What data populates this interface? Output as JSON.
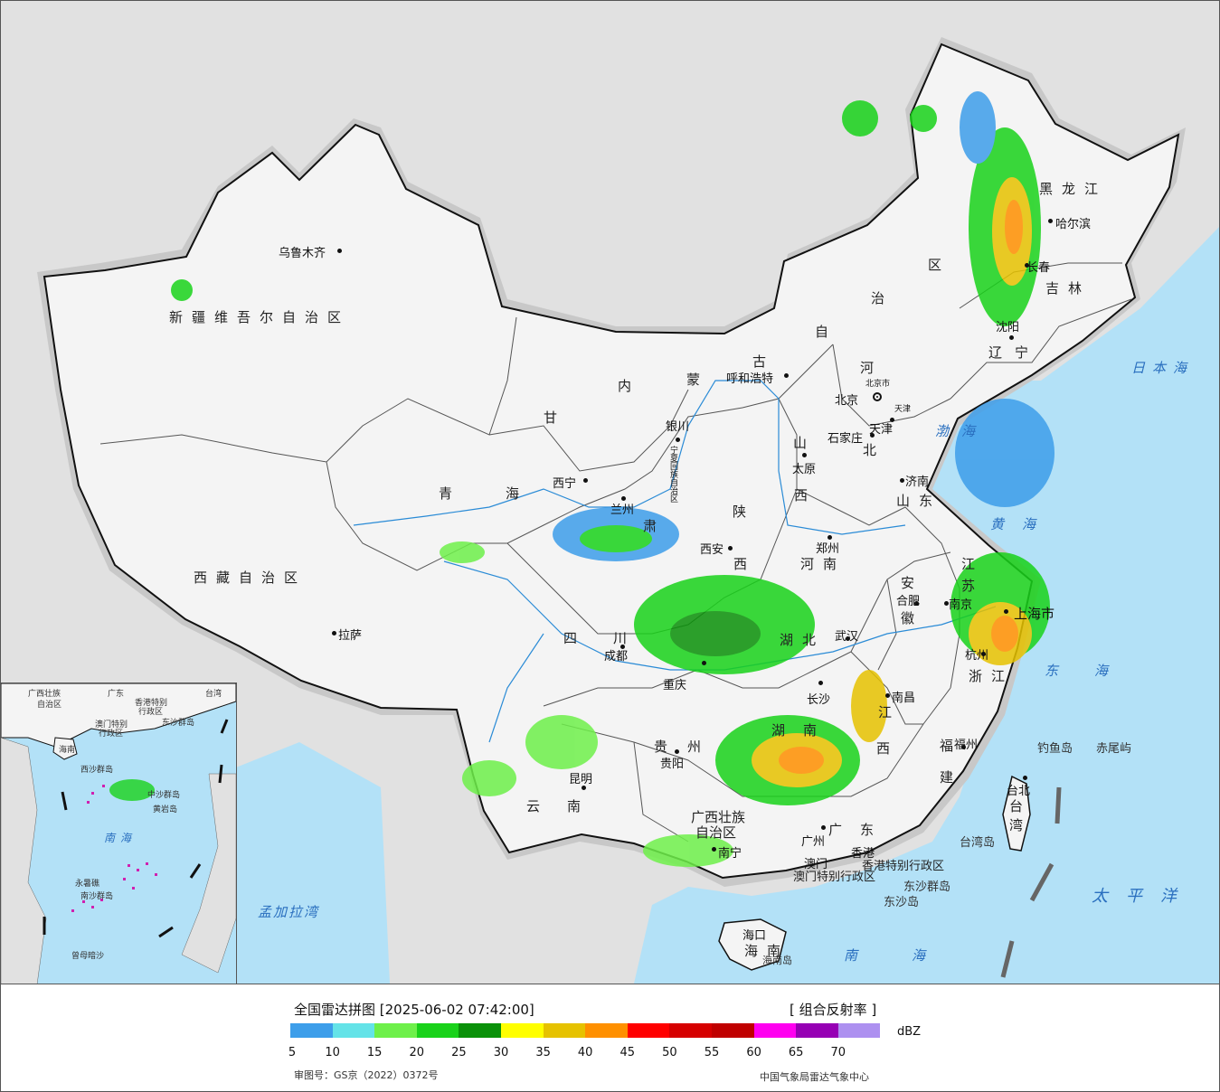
{
  "legend": {
    "title": "全国雷达拼图 [2025-06-02 07:42:00]",
    "product": "[ 组合反射率 ]",
    "unit": "dBZ",
    "approval": "审图号：GS京（2022）0372号",
    "agency": "中国气象局雷达气象中心",
    "scale": [
      {
        "color": "#3d9eea",
        "label": "5"
      },
      {
        "color": "#64e3e8",
        "label": "10"
      },
      {
        "color": "#6ef04a",
        "label": "15"
      },
      {
        "color": "#19d21a",
        "label": "20"
      },
      {
        "color": "#0a9109",
        "label": "25"
      },
      {
        "color": "#ffff00",
        "label": "30"
      },
      {
        "color": "#e6c200",
        "label": "35"
      },
      {
        "color": "#ff9000",
        "label": "40"
      },
      {
        "color": "#ff0000",
        "label": "45"
      },
      {
        "color": "#d60000",
        "label": "50"
      },
      {
        "color": "#c00000",
        "label": "55"
      },
      {
        "color": "#ff00f0",
        "label": "60"
      },
      {
        "color": "#9600b4",
        "label": "65"
      },
      {
        "color": "#ad90f0",
        "label": "70"
      }
    ]
  },
  "colors": {
    "sea": "#b3e1f7",
    "land_china": "#f4f4f4",
    "land_other": "#e1e1e1",
    "border": "#111111"
  },
  "cities": {
    "urumqi": "乌鲁木齐",
    "lhasa": "拉萨",
    "xining": "西宁",
    "lanzhou": "兰州",
    "yinchuan": "银川",
    "hohhot": "呼和浩特",
    "beijing": "北京",
    "beijing_small": "北京市",
    "tianjin": "天津",
    "tianjin_small": "天津",
    "shijiazhuang": "石家庄",
    "taiyuan": "太原",
    "jinan": "济南",
    "zhengzhou": "郑州",
    "xian": "西安",
    "chengdu": "成都",
    "chongqing": "重庆",
    "wuhan": "武汉",
    "hefei": "合肥",
    "nanjing": "南京",
    "shanghai": "上海市",
    "hangzhou": "杭州",
    "nanchang": "南昌",
    "changsha": "长沙",
    "guiyang": "贵阳",
    "kunming": "昆明",
    "nanning": "南宁",
    "guangzhou": "广州",
    "macau": "澳门",
    "hongkong": "香港",
    "fuzhou": "福州",
    "taipei": "台北",
    "haikou": "海口",
    "shenyang": "沈阳",
    "changchun": "长春",
    "harbin": "哈尔滨",
    "ningxia": "宁夏回族自治区"
  },
  "regions": {
    "xinjiang": "新疆维吾尔自治区",
    "tibet": "西藏自治区",
    "qinghai_1": "青",
    "qinghai_2": "海",
    "gansu": "甘",
    "su": "肃",
    "nei": "内",
    "meng": "蒙",
    "gu": "古",
    "zi": "自",
    "zhi": "治",
    "qu": "区",
    "heilongjiang": "黑龙江",
    "jilin": "吉林",
    "liaoning": "辽宁",
    "hebei_he": "河",
    "hebei_bei": "北",
    "shanxi_1": "山",
    "shanxi_2": "西",
    "shandong": "山东",
    "shaanxi_1": "陕",
    "shaanxi_2": "西",
    "henan": "河南",
    "sichuan": "四川",
    "hubei": "湖北",
    "anhui": "安徽",
    "jiangsu_1": "江",
    "jiangsu_2": "苏",
    "zhejiang": "浙江",
    "jiangxi_1": "江",
    "jiangxi_2": "西",
    "hunan": "湖南",
    "guizhou": "贵州",
    "yunnan": "云南",
    "guangxi_1": "广西壮族",
    "guangxi_2": "自治区",
    "guangdong": "广东",
    "fujian": "福建",
    "taiwan": "台湾",
    "hainan": "海南",
    "hk_sar": "香港特别行政区",
    "macau_sar": "澳门特别行政区"
  },
  "islands": {
    "diaoyu": "钓鱼岛",
    "chiwei": "赤尾屿",
    "taiwan_island": "台湾岛",
    "dongsha_islands": "东沙群岛",
    "dongsha_island": "东沙岛",
    "hainan_island": "海南岛"
  },
  "seas": {
    "japan_sea": "日本海",
    "bohai": "渤海",
    "yellow_sea": "黄海",
    "east_sea": "东海",
    "pacific": "太平洋",
    "south_sea": "南海",
    "bengal": "孟加拉湾"
  },
  "inset": {
    "guangxi": "广西壮族",
    "guangxi_2": "自治区",
    "guangdong": "广东",
    "hk": "香港特别",
    "hk_2": "行政区",
    "macau": "澳门特别",
    "macau_2": "行政区",
    "taiwan": "台湾",
    "hainan": "海南",
    "dongsha": "东沙群岛",
    "xisha": "西沙群岛",
    "zhongsha": "中沙群岛",
    "huangyan": "黄岩岛",
    "nansha": "南沙群岛",
    "yongshu": "永暑礁",
    "zengmu": "曾母暗沙",
    "south_sea": "南海"
  }
}
